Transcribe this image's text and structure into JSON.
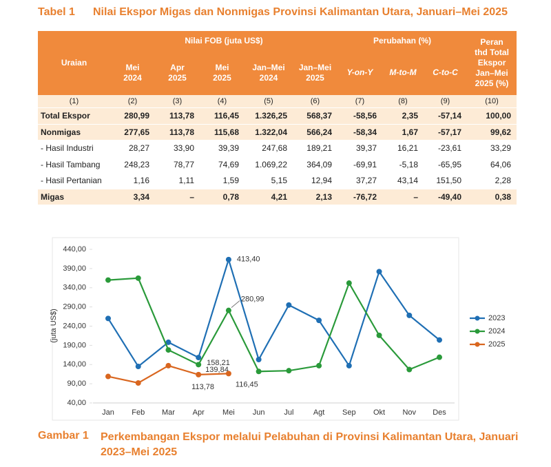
{
  "table": {
    "label": "Tabel 1",
    "title": "Nilai Ekspor Migas dan Nonmigas Provinsi Kalimantan Utara, Januari–Mei 2025",
    "header_top": [
      "Uraian",
      "Nilai FOB (juta US$)",
      "Perubahan (%)",
      "Peran\nthd Total\nEkspor\nJan–Mei\n2025 (%)"
    ],
    "header_sub": [
      "Mei\n2024",
      "Apr\n2025",
      "Mei\n2025",
      "Jan–Mei\n2024",
      "Jan–Mei\n2025",
      "Y-on-Y",
      "M-to-M",
      "C-to-C"
    ],
    "numbers": [
      "(1)",
      "(2)",
      "(3)",
      "(4)",
      "(5)",
      "(6)",
      "(7)",
      "(8)",
      "(9)",
      "(10)"
    ],
    "rows": [
      [
        "Total Ekspor",
        "280,99",
        "113,78",
        "116,45",
        "1.326,25",
        "568,37",
        "-58,56",
        "2,35",
        "-57,14",
        "100,00"
      ],
      [
        "Nonmigas",
        "277,65",
        "113,78",
        "115,68",
        "1.322,04",
        "566,24",
        "-58,34",
        "1,67",
        "-57,17",
        "99,62"
      ],
      [
        "- Hasil Industri",
        "28,27",
        "33,90",
        "39,39",
        "247,68",
        "189,21",
        "39,37",
        "16,21",
        "-23,61",
        "33,29"
      ],
      [
        "- Hasil Tambang",
        "248,23",
        "78,77",
        "74,69",
        "1.069,22",
        "364,09",
        "-69,91",
        "-5,18",
        "-65,95",
        "64,06"
      ],
      [
        "- Hasil Pertanian",
        "1,16",
        "1,11",
        "1,59",
        "5,15",
        "12,94",
        "37,27",
        "43,14",
        "151,50",
        "2,28"
      ],
      [
        "Migas",
        "3,34",
        "–",
        "0,78",
        "4,21",
        "2,13",
        "-76,72",
        "–",
        "-49,40",
        "0,38"
      ]
    ]
  },
  "chart_data": {
    "type": "line",
    "y_label": "(juta US$)",
    "categories": [
      "Jan",
      "Feb",
      "Mar",
      "Apr",
      "Mei",
      "Jun",
      "Jul",
      "Agt",
      "Sep",
      "Okt",
      "Nov",
      "Des"
    ],
    "ylim": [
      40,
      440
    ],
    "yticks": [
      {
        "value": 40,
        "label": "40,00"
      },
      {
        "value": 90,
        "label": "90,00"
      },
      {
        "value": 140,
        "label": "140,00"
      },
      {
        "value": 190,
        "label": "190,00"
      },
      {
        "value": 240,
        "label": "240,00"
      },
      {
        "value": 290,
        "label": "290,00"
      },
      {
        "value": 340,
        "label": "340,00"
      },
      {
        "value": 390,
        "label": "390,00"
      },
      {
        "value": 440,
        "label": "440,00"
      }
    ],
    "grid": false,
    "legend": "right",
    "series": [
      {
        "name": "2023",
        "color": "#1f6fb4",
        "values": [
          260,
          135,
          198,
          158.21,
          413.4,
          153,
          295,
          255,
          137,
          382,
          268,
          204
        ],
        "value_labels": [
          null,
          null,
          null,
          "158,21",
          "413,40",
          null,
          null,
          null,
          null,
          null,
          null,
          null
        ]
      },
      {
        "name": "2024",
        "color": "#2a9a3a",
        "values": [
          360,
          365,
          178,
          139.84,
          280.99,
          122,
          124,
          137,
          352,
          216,
          127,
          159
        ],
        "value_labels": [
          null,
          null,
          null,
          "139,84",
          "280,99",
          null,
          null,
          null,
          null,
          null,
          null,
          null
        ]
      },
      {
        "name": "2025",
        "color": "#d9661f",
        "values": [
          109,
          92,
          137,
          113.78,
          116.45,
          null,
          null,
          null,
          null,
          null,
          null,
          null
        ],
        "value_labels": [
          null,
          null,
          null,
          "113,78",
          "116,45",
          null,
          null,
          null,
          null,
          null,
          null,
          null
        ]
      }
    ]
  },
  "caption": {
    "label": "Gambar 1",
    "text": "Perkembangan Ekspor melalui Pelabuhan di Provinsi Kalimantan Utara, Januari\n2023–Mei 2025"
  }
}
